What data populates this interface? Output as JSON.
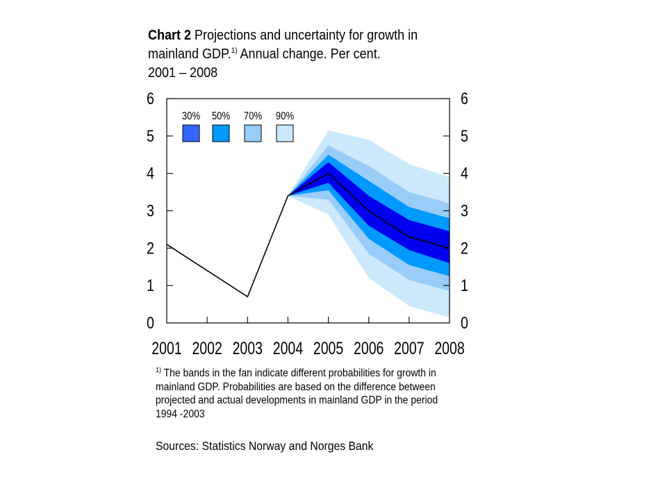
{
  "title": {
    "label": "Chart 2",
    "text_line1": "Projections and uncertainty for growth in",
    "text_line2_before": "mainland GDP.",
    "footnote_ref": "1)",
    "text_line2_after": " Annual change. Per cent.",
    "text_line3": "2001 – 2008"
  },
  "footnote": {
    "marker": "1)",
    "text": "The bands in the fan indicate different probabilities for growth in mainland GDP. Probabilities are based on the difference between projected and actual developments in mainland GDP in the period 1994 -2003"
  },
  "sources": "Sources: Statistics Norway and Norges Bank",
  "chart_data": {
    "type": "area",
    "title": "Projections and uncertainty for growth in mainland GDP. Annual change. Per cent. 2001 – 2008",
    "xlabel": "",
    "ylabel": "",
    "categories": [
      "2001",
      "2002",
      "2003",
      "2004",
      "2005",
      "2006",
      "2007",
      "2008"
    ],
    "ylim": [
      0,
      6
    ],
    "yticks": [
      "0",
      "1",
      "2",
      "3",
      "4",
      "5",
      "6"
    ],
    "y_axis_right": true,
    "grid": false,
    "legend_position": "top-left",
    "line": {
      "values": [
        2.1,
        1.4,
        0.7,
        3.4,
        4.0,
        3.0,
        2.3,
        2.0
      ],
      "color": "#000000"
    },
    "bands": [
      {
        "name": "90%",
        "color": "#cce9fc",
        "upper": [
          null,
          null,
          null,
          3.4,
          5.15,
          4.9,
          4.25,
          3.9
        ],
        "lower": [
          null,
          null,
          null,
          3.4,
          2.9,
          1.2,
          0.45,
          0.15
        ]
      },
      {
        "name": "70%",
        "color": "#99ccf9",
        "upper": [
          null,
          null,
          null,
          3.4,
          4.75,
          4.2,
          3.5,
          3.2
        ],
        "lower": [
          null,
          null,
          null,
          3.4,
          3.3,
          1.85,
          1.15,
          0.85
        ]
      },
      {
        "name": "50%",
        "color": "#0099ff",
        "upper": [
          null,
          null,
          null,
          3.4,
          4.5,
          3.8,
          3.1,
          2.8
        ],
        "lower": [
          null,
          null,
          null,
          3.4,
          3.55,
          2.25,
          1.55,
          1.25
        ]
      },
      {
        "name": "30%",
        "color": "#0000ee",
        "upper": [
          null,
          null,
          null,
          3.4,
          4.3,
          3.4,
          2.75,
          2.45
        ],
        "lower": [
          null,
          null,
          null,
          3.4,
          3.75,
          2.6,
          1.95,
          1.6
        ]
      }
    ],
    "legend": [
      {
        "label": "30%",
        "color": "#3366ff"
      },
      {
        "label": "50%",
        "color": "#0099ff"
      },
      {
        "label": "70%",
        "color": "#99ccf9"
      },
      {
        "label": "90%",
        "color": "#cce9fc"
      }
    ]
  }
}
